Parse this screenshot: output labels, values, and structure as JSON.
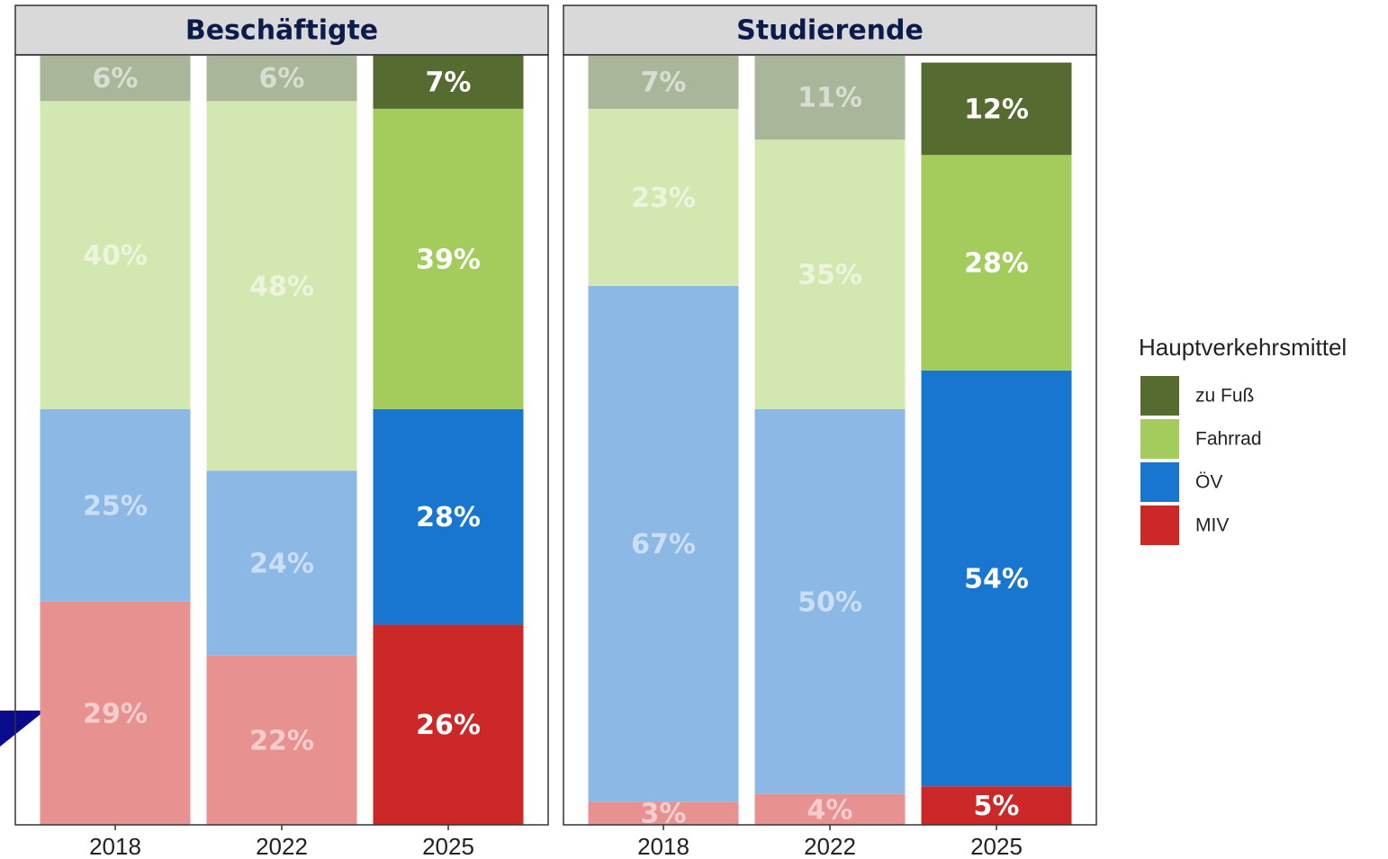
{
  "chart_data": [
    {
      "type": "bar",
      "stacked": true,
      "title": "Beschäftigte",
      "legend_title": "Hauptverkehrsmittel",
      "categories": [
        "2018",
        "2022",
        "2025"
      ],
      "ylim": [
        0,
        100
      ],
      "series": [
        {
          "name": "MIV",
          "color": "#cc2828",
          "faded_color": "#e89191",
          "values": [
            29,
            22,
            26
          ],
          "value_labels": [
            "29%",
            "22%",
            "26%"
          ]
        },
        {
          "name": "ÖV",
          "color": "#1976d0",
          "faded_color": "#8cb8e6",
          "values": [
            25,
            24,
            28
          ],
          "value_labels": [
            "25%",
            "24%",
            "28%"
          ]
        },
        {
          "name": "Fahrrad",
          "color": "#a3cc5c",
          "faded_color": "#d3e8b0",
          "values": [
            40,
            48,
            39
          ],
          "value_labels": [
            "40%",
            "48%",
            "39%"
          ]
        },
        {
          "name": "zu Fuß",
          "color": "#556b2f",
          "faded_color": "#a9b69a",
          "values": [
            6,
            6,
            7
          ],
          "value_labels": [
            "6%",
            "6%",
            "7%"
          ]
        }
      ]
    },
    {
      "type": "bar",
      "stacked": true,
      "title": "Studierende",
      "categories": [
        "2018",
        "2022",
        "2025"
      ],
      "ylim": [
        0,
        100
      ],
      "series": [
        {
          "name": "MIV",
          "color": "#cc2828",
          "faded_color": "#e89191",
          "values": [
            3,
            4,
            5
          ],
          "value_labels": [
            "3%",
            "4%",
            "5%"
          ]
        },
        {
          "name": "ÖV",
          "color": "#1976d0",
          "faded_color": "#8cb8e6",
          "values": [
            67,
            50,
            54
          ],
          "value_labels": [
            "67%",
            "50%",
            "54%"
          ]
        },
        {
          "name": "Fahrrad",
          "color": "#a3cc5c",
          "faded_color": "#d3e8b0",
          "values": [
            23,
            35,
            28
          ],
          "value_labels": [
            "23%",
            "35%",
            "28%"
          ]
        },
        {
          "name": "zu Fuß",
          "color": "#556b2f",
          "faded_color": "#a9b69a",
          "values": [
            7,
            11,
            12
          ],
          "value_labels": [
            "7%",
            "11%",
            "12%"
          ]
        }
      ]
    }
  ]
}
